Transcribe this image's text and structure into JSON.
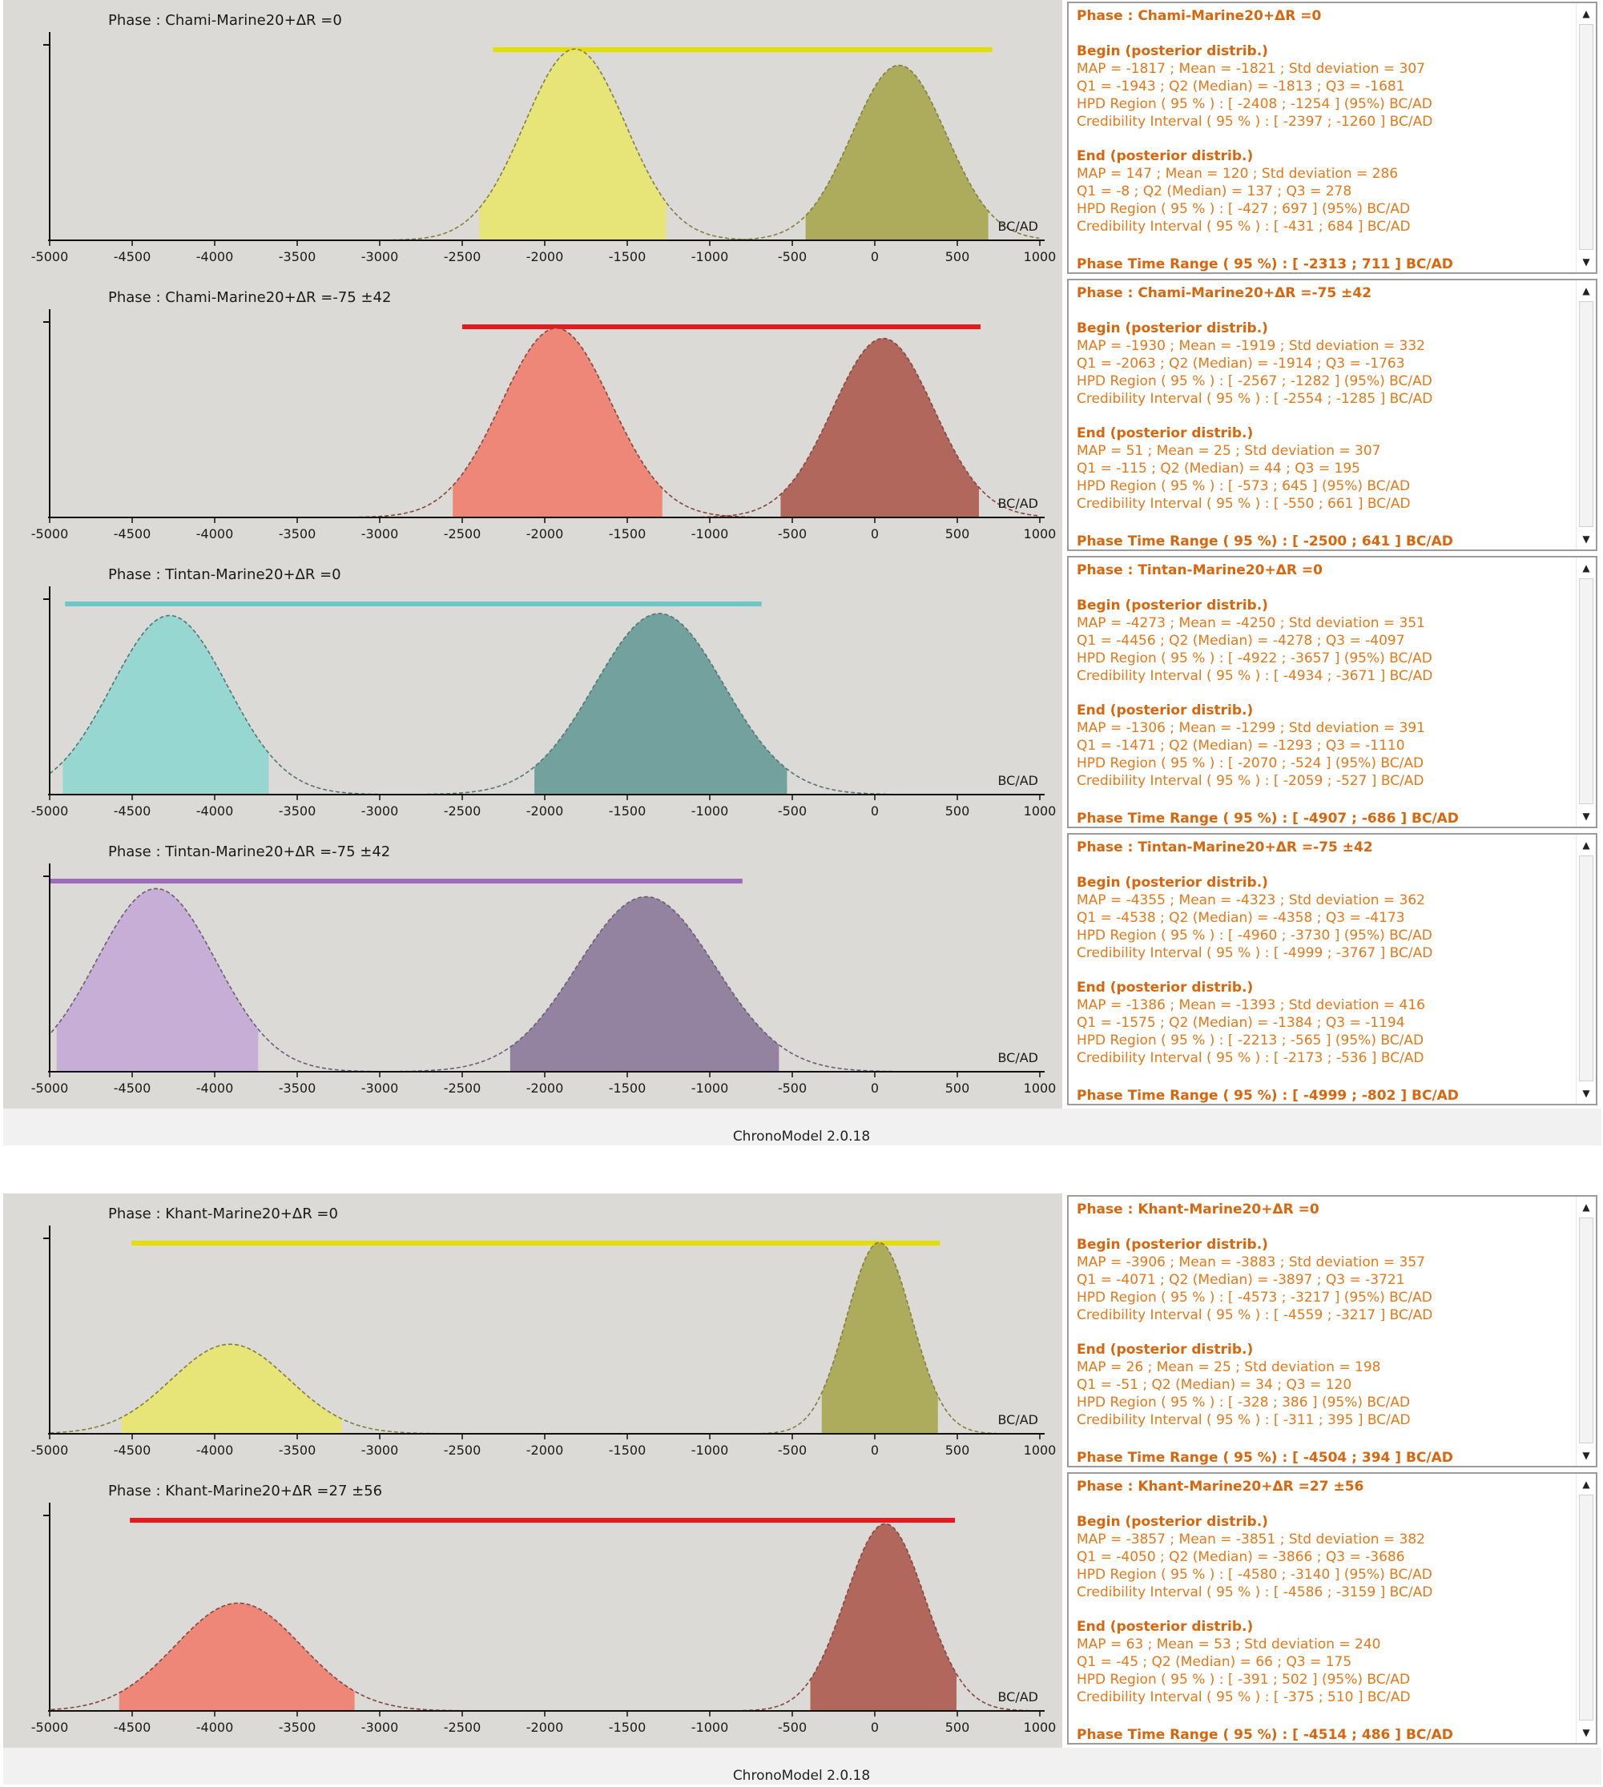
{
  "app": {
    "footer": "ChronoModel 2.0.18"
  },
  "axis": {
    "ticks": [
      -5000,
      -4500,
      -4000,
      -3500,
      -3000,
      -2500,
      -2000,
      -1500,
      -1000,
      -500,
      0,
      500,
      1000
    ],
    "unit": "BC/AD",
    "xlim": [
      -5000,
      1000
    ]
  },
  "chart_data": [
    {
      "type": "area",
      "title": "Phase : Chami-Marine20+ΔR =0",
      "color": "#e8e66e",
      "bar_color": "#e3dd00",
      "range": [
        -2313,
        711
      ],
      "begin": {
        "map": -1817,
        "sd": 307,
        "peak": 0.94,
        "hpd": [
          -2408,
          -1254
        ]
      },
      "end": {
        "map": 147,
        "sd": 286,
        "peak": 0.86,
        "hpd": [
          -427,
          697
        ]
      }
    },
    {
      "type": "area",
      "title": "Phase : Chami-Marine20+ΔR =-75 ±42",
      "color": "#f07d6e",
      "bar_color": "#e8191e",
      "range": [
        -2500,
        641
      ],
      "begin": {
        "map": -1930,
        "sd": 332,
        "peak": 0.93,
        "hpd": [
          -2567,
          -1282
        ]
      },
      "end": {
        "map": 51,
        "sd": 307,
        "peak": 0.88,
        "hpd": [
          -573,
          645
        ]
      }
    },
    {
      "type": "area",
      "title": "Phase : Tintan-Marine20+ΔR =0",
      "color": "#8fd6d2",
      "bar_color": "#6cc8c8",
      "range": [
        -4907,
        -686
      ],
      "begin": {
        "map": -4273,
        "sd": 351,
        "peak": 0.88,
        "hpd": [
          -4922,
          -3657
        ]
      },
      "end": {
        "map": -1306,
        "sd": 391,
        "peak": 0.89,
        "hpd": [
          -2070,
          -524
        ]
      }
    },
    {
      "type": "area",
      "title": "Phase : Tintan-Marine20+ΔR =-75 ±42",
      "color": "#c3a8d6",
      "bar_color": "#a06bbd",
      "range": [
        -4999,
        -802
      ],
      "begin": {
        "map": -4355,
        "sd": 362,
        "peak": 0.9,
        "hpd": [
          -4960,
          -3730
        ]
      },
      "end": {
        "map": -1386,
        "sd": 416,
        "peak": 0.86,
        "hpd": [
          -2213,
          -565
        ]
      }
    },
    {
      "type": "area",
      "title": "Phase : Khant-Marine20+ΔR =0",
      "color": "#e8e66e",
      "bar_color": "#e3dd00",
      "range": [
        -4504,
        394
      ],
      "begin": {
        "map": -3906,
        "sd": 357,
        "peak": 0.44,
        "hpd": [
          -4573,
          -3217
        ]
      },
      "end": {
        "map": 26,
        "sd": 198,
        "peak": 0.94,
        "hpd": [
          -328,
          386
        ]
      }
    },
    {
      "type": "area",
      "title": "Phase : Khant-Marine20+ΔR =27 ±56",
      "color": "#f07d6e",
      "bar_color": "#e8191e",
      "range": [
        -4514,
        486
      ],
      "begin": {
        "map": -3857,
        "sd": 382,
        "peak": 0.53,
        "hpd": [
          -4580,
          -3140
        ]
      },
      "end": {
        "map": 63,
        "sd": 240,
        "peak": 0.92,
        "hpd": [
          -391,
          502
        ]
      }
    }
  ],
  "info": [
    {
      "title": "Phase : Chami-Marine20+ΔR =0",
      "begin_head": "Begin (posterior distrib.)",
      "begin": [
        "MAP = -1817 ; Mean = -1821 ; Std deviation = 307",
        "Q1 = -1943 ; Q2 (Median) = -1813 ; Q3 = -1681",
        "HPD Region ( 95 % ) : [ -2408 ; -1254 ] (95%) BC/AD",
        "Credibility Interval ( 95 % ) : [ -2397 ; -1260 ] BC/AD"
      ],
      "end_head": "End (posterior distrib.)",
      "end": [
        "MAP = 147 ; Mean = 120 ; Std deviation = 286",
        "Q1 = -8 ; Q2 (Median) = 137 ; Q3 = 278",
        "HPD Region ( 95 % ) : [ -427 ; 697 ] (95%) BC/AD",
        "Credibility Interval ( 95 % ) : [ -431 ; 684 ] BC/AD"
      ],
      "range": "Phase Time Range ( 95 %) : [ -2313 ; 711 ] BC/AD"
    },
    {
      "title": "Phase : Chami-Marine20+ΔR =-75 ±42",
      "begin_head": "Begin (posterior distrib.)",
      "begin": [
        "MAP = -1930 ; Mean = -1919 ; Std deviation = 332",
        "Q1 = -2063 ; Q2 (Median) = -1914 ; Q3 = -1763",
        "HPD Region ( 95 % ) : [ -2567 ; -1282 ] (95%) BC/AD",
        "Credibility Interval ( 95 % ) : [ -2554 ; -1285 ] BC/AD"
      ],
      "end_head": "End (posterior distrib.)",
      "end": [
        "MAP = 51 ; Mean = 25 ; Std deviation = 307",
        "Q1 = -115 ; Q2 (Median) = 44 ; Q3 = 195",
        "HPD Region ( 95 % ) : [ -573 ; 645 ] (95%) BC/AD",
        "Credibility Interval ( 95 % ) : [ -550 ; 661 ] BC/AD"
      ],
      "range": "Phase Time Range ( 95 %) : [ -2500 ; 641 ] BC/AD"
    },
    {
      "title": "Phase : Tintan-Marine20+ΔR =0",
      "begin_head": "Begin (posterior distrib.)",
      "begin": [
        "MAP = -4273 ; Mean = -4250 ; Std deviation = 351",
        "Q1 = -4456 ; Q2 (Median) = -4278 ; Q3 = -4097",
        "HPD Region ( 95 % ) : [ -4922 ; -3657 ] (95%) BC/AD",
        "Credibility Interval ( 95 % ) : [ -4934 ; -3671 ] BC/AD"
      ],
      "end_head": "End (posterior distrib.)",
      "end": [
        "MAP = -1306 ; Mean = -1299 ; Std deviation = 391",
        "Q1 = -1471 ; Q2 (Median) = -1293 ; Q3 = -1110",
        "HPD Region ( 95 % ) : [ -2070 ; -524 ] (95%) BC/AD",
        "Credibility Interval ( 95 % ) : [ -2059 ; -527 ] BC/AD"
      ],
      "range": "Phase Time Range ( 95 %) : [ -4907 ; -686 ] BC/AD"
    },
    {
      "title": "Phase : Tintan-Marine20+ΔR =-75 ±42",
      "begin_head": "Begin (posterior distrib.)",
      "begin": [
        "MAP = -4355 ; Mean = -4323 ; Std deviation = 362",
        "Q1 = -4538 ; Q2 (Median) = -4358 ; Q3 = -4173",
        "HPD Region ( 95 % ) : [ -4960 ; -3730 ] (95%) BC/AD",
        "Credibility Interval ( 95 % ) : [ -4999 ; -3767 ] BC/AD"
      ],
      "end_head": "End (posterior distrib.)",
      "end": [
        "MAP = -1386 ; Mean = -1393 ; Std deviation = 416",
        "Q1 = -1575 ; Q2 (Median) = -1384 ; Q3 = -1194",
        "HPD Region ( 95 % ) : [ -2213 ; -565 ] (95%) BC/AD",
        "Credibility Interval ( 95 % ) : [ -2173 ; -536 ] BC/AD"
      ],
      "range": "Phase Time Range ( 95 %) : [ -4999 ; -802 ] BC/AD"
    },
    {
      "title": "Phase : Khant-Marine20+ΔR =0",
      "begin_head": "Begin (posterior distrib.)",
      "begin": [
        "MAP = -3906 ; Mean = -3883 ; Std deviation = 357",
        "Q1 = -4071 ; Q2 (Median) = -3897 ; Q3 = -3721",
        "HPD Region ( 95 % ) : [ -4573 ; -3217 ] (95%) BC/AD",
        "Credibility Interval ( 95 % ) : [ -4559 ; -3217 ] BC/AD"
      ],
      "end_head": "End (posterior distrib.)",
      "end": [
        "MAP = 26 ; Mean = 25 ; Std deviation = 198",
        "Q1 = -51 ; Q2 (Median) = 34 ; Q3 = 120",
        "HPD Region ( 95 % ) : [ -328 ; 386 ] (95%) BC/AD",
        "Credibility Interval ( 95 % ) : [ -311 ; 395 ] BC/AD"
      ],
      "range": "Phase Time Range ( 95 %) : [ -4504 ; 394 ] BC/AD"
    },
    {
      "title": "Phase : Khant-Marine20+ΔR =27 ±56",
      "begin_head": "Begin (posterior distrib.)",
      "begin": [
        "MAP = -3857 ; Mean = -3851 ; Std deviation = 382",
        "Q1 = -4050 ; Q2 (Median) = -3866 ; Q3 = -3686",
        "HPD Region ( 95 % ) : [ -4580 ; -3140 ] (95%) BC/AD",
        "Credibility Interval ( 95 % ) : [ -4586 ; -3159 ] BC/AD"
      ],
      "end_head": "End (posterior distrib.)",
      "end": [
        "MAP = 63 ; Mean = 53 ; Std deviation = 240",
        "Q1 = -45 ; Q2 (Median) = 66 ; Q3 = 175",
        "HPD Region ( 95 % ) : [ -391 ; 502 ] (95%) BC/AD",
        "Credibility Interval ( 95 % ) : [ -375 ; 510 ] BC/AD"
      ],
      "range": "Phase Time Range ( 95 %) : [ -4514 ; 486 ] BC/AD"
    }
  ]
}
